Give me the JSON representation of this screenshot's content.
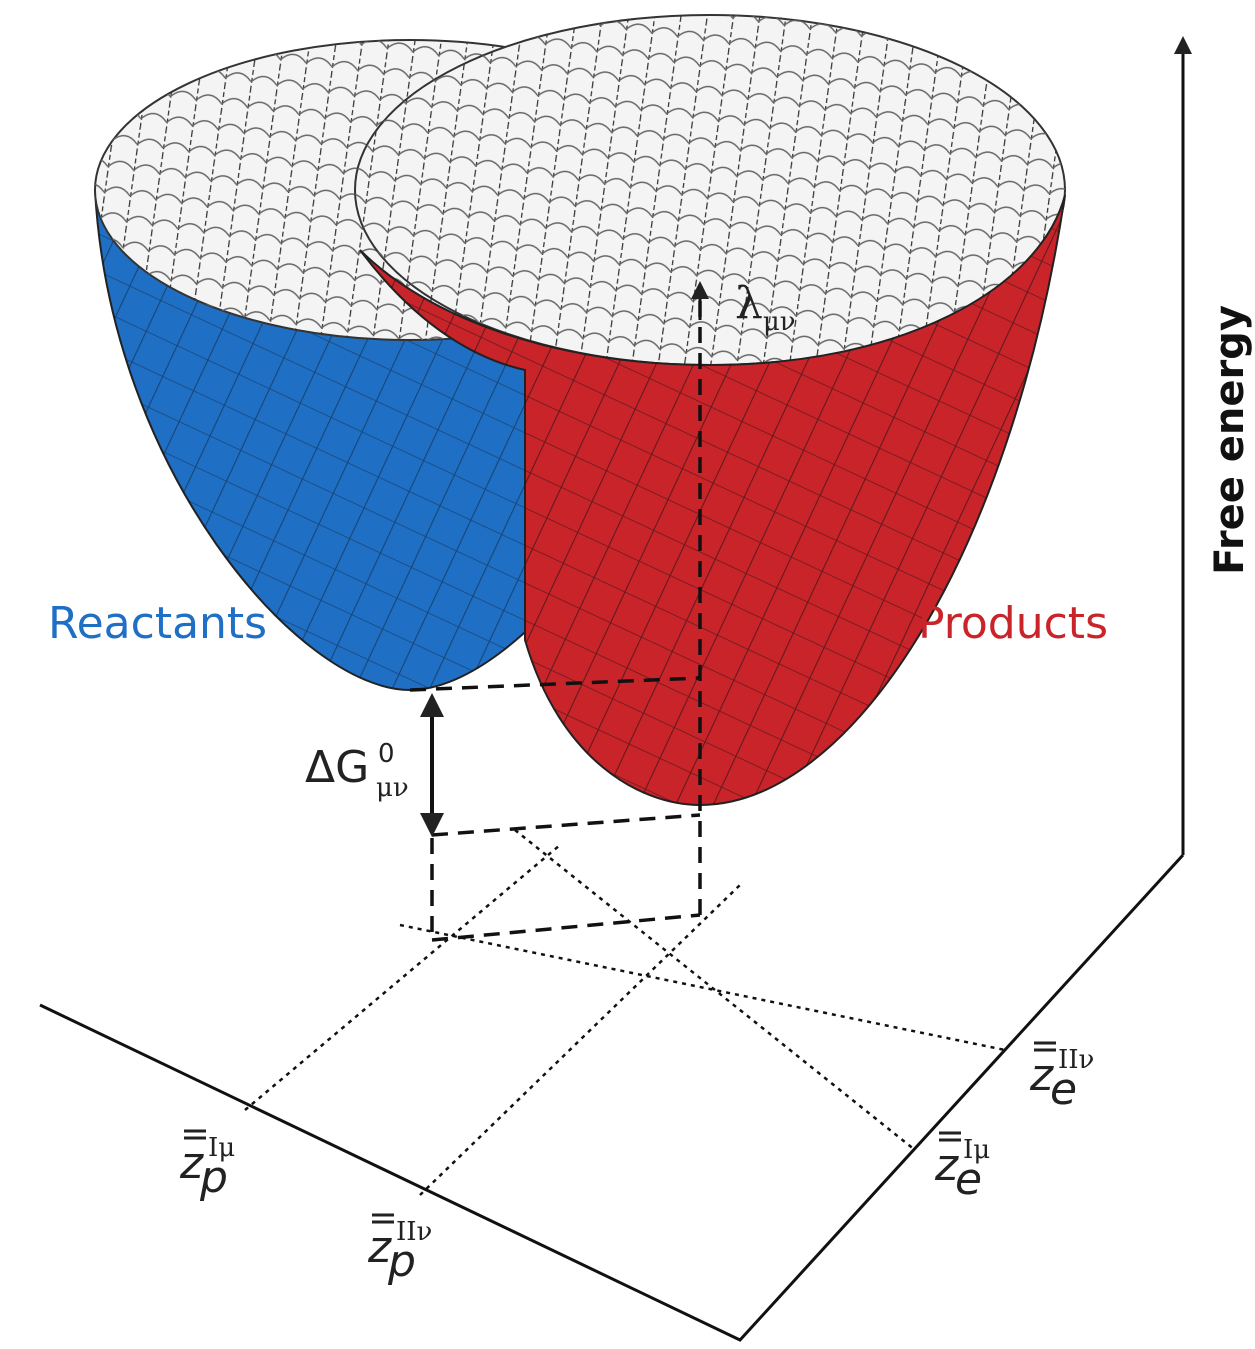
{
  "labels": {
    "reactants": "Reactants",
    "products": "Products",
    "free_energy": "Free energy",
    "lambda": {
      "base": "λ",
      "sub": "μν"
    },
    "delta_g": {
      "base": "ΔG",
      "sup": "0",
      "sub": "μν"
    },
    "axis_labels": [
      {
        "base": "z",
        "sub": "p",
        "sup": "Iμ"
      },
      {
        "base": "z",
        "sub": "p",
        "sup": "IIν"
      },
      {
        "base": "z",
        "sub": "e",
        "sup": "IIν"
      },
      {
        "base": "z",
        "sub": "e",
        "sup": "Iμ"
      }
    ]
  }
}
